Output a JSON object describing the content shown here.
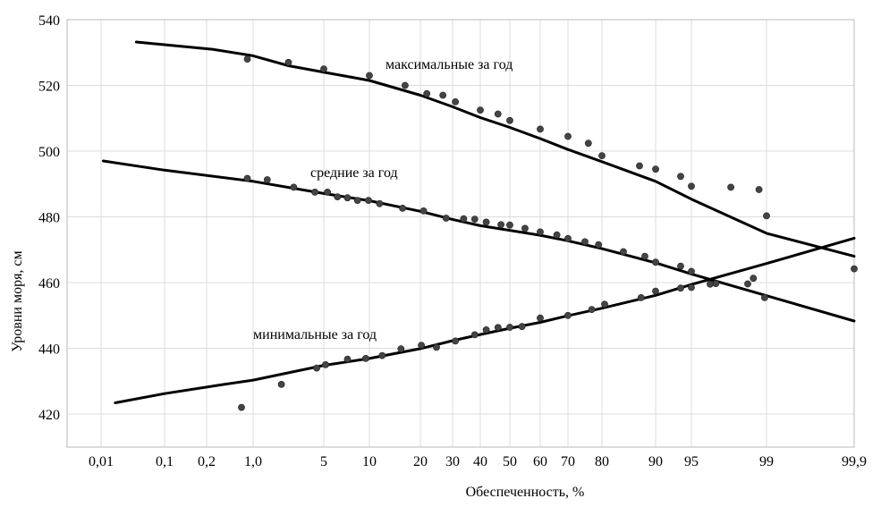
{
  "chart_data": {
    "type": "scatter",
    "title": "",
    "xlabel": "Обеспеченность, %",
    "ylabel": "Уровни моря, см",
    "x_scale": "probability",
    "y_range": [
      410,
      540
    ],
    "x_range": [
      0.002,
      99.9
    ],
    "grid": true,
    "y_ticks": [
      {
        "value": 420,
        "label": "420"
      },
      {
        "value": 440,
        "label": "440"
      },
      {
        "value": 460,
        "label": "460"
      },
      {
        "value": 480,
        "label": "480"
      },
      {
        "value": 500,
        "label": "500"
      },
      {
        "value": 520,
        "label": "520"
      },
      {
        "value": 540,
        "label": "540"
      }
    ],
    "x_ticks": [
      {
        "value": 0.01,
        "label": "0,01"
      },
      {
        "value": 0.1,
        "label": "0,1"
      },
      {
        "value": 0.2,
        "label": "0,2"
      },
      {
        "value": 1,
        "label": "1,0"
      },
      {
        "value": 5,
        "label": "5"
      },
      {
        "value": 10,
        "label": "10"
      },
      {
        "value": 20,
        "label": "20"
      },
      {
        "value": 30,
        "label": "30"
      },
      {
        "value": 40,
        "label": "40"
      },
      {
        "value": 50,
        "label": "50"
      },
      {
        "value": 60,
        "label": "60"
      },
      {
        "value": 70,
        "label": "70"
      },
      {
        "value": 80,
        "label": "80"
      },
      {
        "value": 90,
        "label": "90"
      },
      {
        "value": 95,
        "label": "95"
      },
      {
        "value": 99,
        "label": "99"
      },
      {
        "value": 99.9,
        "label": "99,9"
      }
    ],
    "series": [
      {
        "key": "max",
        "name": "максимальные за год",
        "curve": [
          [
            0.06,
            533.2
          ],
          [
            0.3,
            531
          ],
          [
            1,
            529
          ],
          [
            3,
            526
          ],
          [
            6,
            523.5
          ],
          [
            10,
            521.5
          ],
          [
            20,
            517
          ],
          [
            30,
            513.5
          ],
          [
            40,
            510.2
          ],
          [
            50,
            507.2
          ],
          [
            60,
            503.8
          ],
          [
            70,
            500.5
          ],
          [
            80,
            496.8
          ],
          [
            90,
            490.8
          ],
          [
            95,
            485.4
          ],
          [
            99,
            475
          ],
          [
            99.9,
            468
          ]
        ],
        "points": [
          [
            0.9,
            528
          ],
          [
            3,
            527
          ],
          [
            5,
            525
          ],
          [
            10,
            523
          ],
          [
            17,
            520
          ],
          [
            22,
            517.5
          ],
          [
            27,
            517
          ],
          [
            31,
            515
          ],
          [
            40,
            512.5
          ],
          [
            46,
            511.3
          ],
          [
            50,
            509.3
          ],
          [
            60,
            506.7
          ],
          [
            70,
            504.5
          ],
          [
            76,
            502.4
          ],
          [
            80,
            498.6
          ],
          [
            87,
            495.5
          ],
          [
            90,
            494.5
          ],
          [
            93.5,
            492.3
          ],
          [
            95,
            489.3
          ],
          [
            97.1,
            489
          ],
          [
            98.6,
            488.3
          ],
          [
            99,
            480.3
          ],
          [
            99.9,
            464.2
          ]
        ]
      },
      {
        "key": "mean",
        "name": "средние за год",
        "curve": [
          [
            0.013,
            497
          ],
          [
            0.1,
            494.2
          ],
          [
            1,
            490.8
          ],
          [
            5,
            487.1
          ],
          [
            10,
            484.9
          ],
          [
            20,
            481.7
          ],
          [
            30,
            479.2
          ],
          [
            40,
            477.3
          ],
          [
            50,
            475.9
          ],
          [
            60,
            474.4
          ],
          [
            70,
            472.7
          ],
          [
            80,
            470.3
          ],
          [
            90,
            466
          ],
          [
            95,
            462.6
          ],
          [
            99,
            456
          ],
          [
            99.9,
            448.3
          ]
        ],
        "points": [
          [
            0.9,
            491.7
          ],
          [
            1.8,
            491.3
          ],
          [
            3.3,
            489
          ],
          [
            4.5,
            487.5
          ],
          [
            5.4,
            487.5
          ],
          [
            6.5,
            486.1
          ],
          [
            7.6,
            485.8
          ],
          [
            8.7,
            485
          ],
          [
            9.9,
            485
          ],
          [
            12,
            484
          ],
          [
            16.5,
            482.6
          ],
          [
            21,
            481.8
          ],
          [
            28,
            479.6
          ],
          [
            34,
            479.4
          ],
          [
            38,
            479.3
          ],
          [
            42,
            478.4
          ],
          [
            47,
            477.6
          ],
          [
            50,
            477.5
          ],
          [
            55,
            476.5
          ],
          [
            60,
            475.4
          ],
          [
            66,
            474.5
          ],
          [
            70,
            473.4
          ],
          [
            75,
            472.4
          ],
          [
            79,
            471.5
          ],
          [
            84,
            469.4
          ],
          [
            88,
            468
          ],
          [
            90,
            466.2
          ],
          [
            93.5,
            465
          ],
          [
            95,
            463.4
          ],
          [
            96.3,
            459.7
          ],
          [
            98,
            459.6
          ],
          [
            98.3,
            461.3
          ],
          [
            98.9,
            455.4
          ]
        ]
      },
      {
        "key": "min",
        "name": "минимальные за год",
        "curve": [
          [
            0.03,
            423.4
          ],
          [
            0.1,
            426.2
          ],
          [
            0.5,
            429
          ],
          [
            1,
            430.3
          ],
          [
            5,
            434.8
          ],
          [
            10,
            436.9
          ],
          [
            20,
            439.9
          ],
          [
            30,
            442.3
          ],
          [
            40,
            444.2
          ],
          [
            50,
            446.1
          ],
          [
            60,
            447.9
          ],
          [
            70,
            449.9
          ],
          [
            80,
            452.2
          ],
          [
            90,
            456.1
          ],
          [
            95,
            459.4
          ],
          [
            99,
            465.8
          ],
          [
            99.9,
            473.5
          ]
        ],
        "points": [
          [
            0.8,
            422
          ],
          [
            2.6,
            429
          ],
          [
            4.6,
            434
          ],
          [
            5.2,
            435
          ],
          [
            7.6,
            436.7
          ],
          [
            9.6,
            436.9
          ],
          [
            12.5,
            437.8
          ],
          [
            16.2,
            439.8
          ],
          [
            20.3,
            440.9
          ],
          [
            25,
            440.3
          ],
          [
            31,
            442.2
          ],
          [
            38,
            444.1
          ],
          [
            42,
            445.6
          ],
          [
            46,
            446.3
          ],
          [
            50,
            446.4
          ],
          [
            54,
            446.6
          ],
          [
            60,
            449.2
          ],
          [
            70,
            450
          ],
          [
            77,
            451.8
          ],
          [
            80.5,
            453.4
          ],
          [
            87.3,
            455.4
          ],
          [
            90,
            457.4
          ],
          [
            93.5,
            458.3
          ],
          [
            95,
            458.5
          ],
          [
            96,
            459.5
          ]
        ]
      }
    ],
    "annotations": [
      {
        "series": "max",
        "text": "максимальные за год"
      },
      {
        "series": "mean",
        "text": "средние за год"
      },
      {
        "series": "min",
        "text": "минимальные за год"
      }
    ]
  }
}
